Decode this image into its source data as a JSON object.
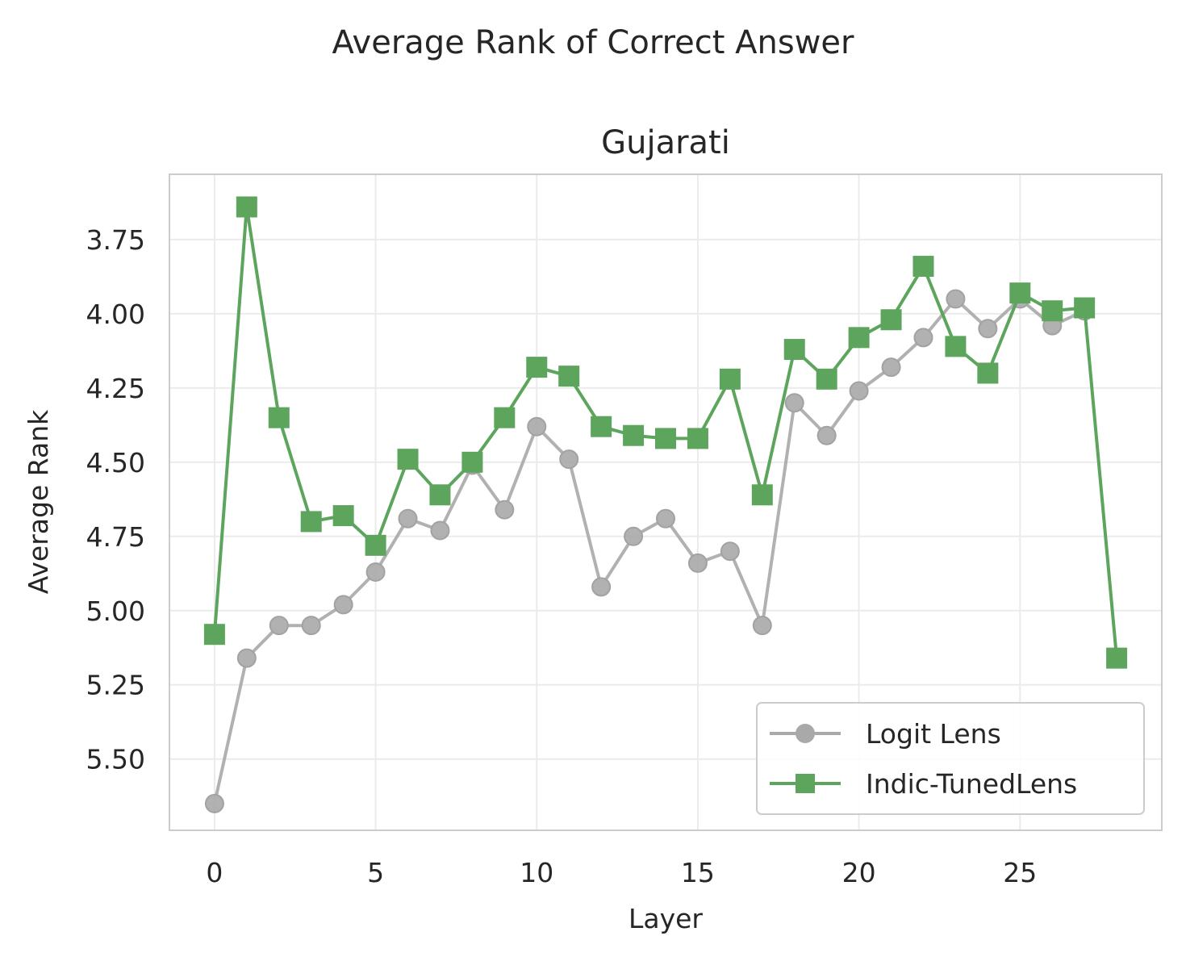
{
  "suptitle": "Average Rank of Correct Answer",
  "chart_data": {
    "type": "line",
    "title": "Gujarati",
    "xlabel": "Layer",
    "ylabel": "Average Rank",
    "xlim": [
      -1.4,
      29.4
    ],
    "ylim": [
      5.74,
      3.53
    ],
    "y_inverted": true,
    "xticks": [
      0,
      5,
      10,
      15,
      20,
      25
    ],
    "yticks": [
      3.75,
      4.0,
      4.25,
      4.5,
      4.75,
      5.0,
      5.25,
      5.5
    ],
    "ytick_labels": [
      "3.75",
      "4.00",
      "4.25",
      "4.50",
      "4.75",
      "5.00",
      "5.25",
      "5.50"
    ],
    "grid": true,
    "legend_position": "lower-right",
    "series": [
      {
        "name": "Logit Lens",
        "color": "#a9a9a9",
        "marker": "circle",
        "x": [
          0,
          1,
          2,
          3,
          4,
          5,
          6,
          7,
          8,
          9,
          10,
          11,
          12,
          13,
          14,
          15,
          16,
          17,
          18,
          19,
          20,
          21,
          22,
          23,
          24,
          25,
          26,
          27
        ],
        "y": [
          5.65,
          5.16,
          5.05,
          5.05,
          4.98,
          4.87,
          4.69,
          4.73,
          4.51,
          4.66,
          4.38,
          4.49,
          4.92,
          4.75,
          4.69,
          4.84,
          4.8,
          5.05,
          4.3,
          4.41,
          4.26,
          4.18,
          4.08,
          3.95,
          4.05,
          3.95,
          4.04,
          3.99
        ]
      },
      {
        "name": "Indic-TunedLens",
        "color": "#5da55d",
        "marker": "square",
        "x": [
          0,
          1,
          2,
          3,
          4,
          5,
          6,
          7,
          8,
          9,
          10,
          11,
          12,
          13,
          14,
          15,
          16,
          17,
          18,
          19,
          20,
          21,
          22,
          23,
          24,
          25,
          26,
          27,
          28
        ],
        "y": [
          5.08,
          3.64,
          4.35,
          4.7,
          4.68,
          4.78,
          4.49,
          4.61,
          4.5,
          4.35,
          4.18,
          4.21,
          4.38,
          4.41,
          4.42,
          4.42,
          4.22,
          4.61,
          4.12,
          4.22,
          4.08,
          4.02,
          3.84,
          4.11,
          4.2,
          3.93,
          3.99,
          3.98,
          5.16
        ]
      }
    ]
  }
}
